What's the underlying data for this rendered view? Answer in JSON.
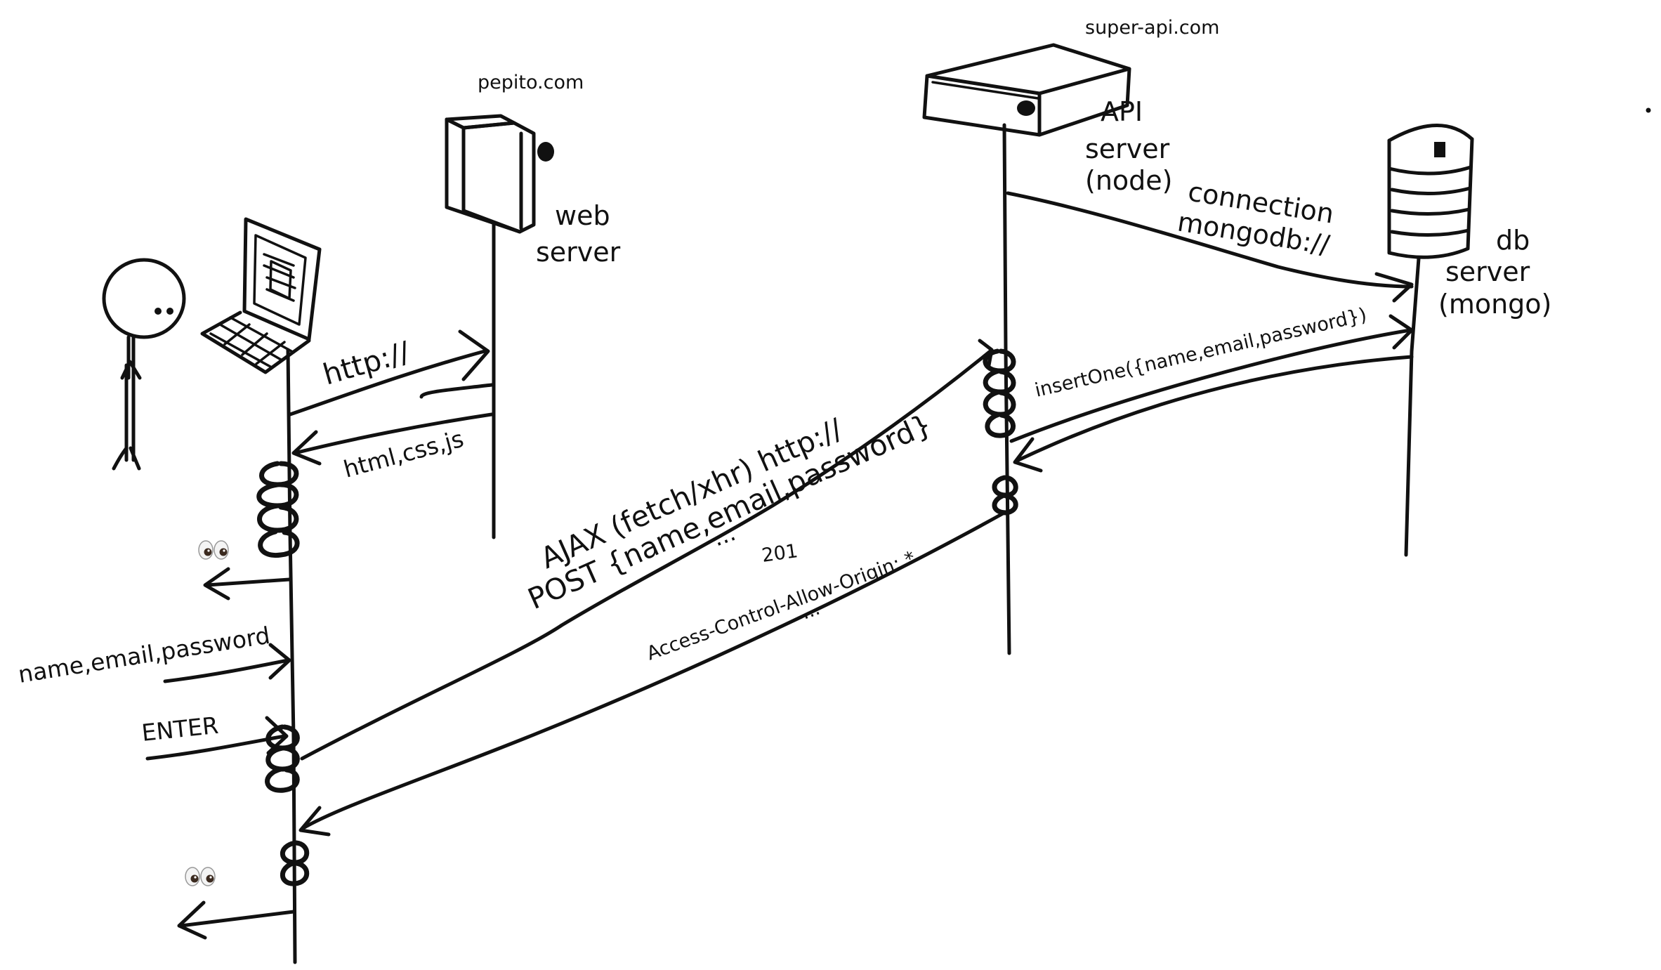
{
  "actors": {
    "web_server_domain": "pepito.com",
    "web_server_name_line1": "web",
    "web_server_name_line2": "server",
    "api_server_domain": "super-api.com",
    "api_server_name_line1": "API",
    "api_server_name_line2": "server",
    "api_server_name_line3": "(node)",
    "db_server_name_line1": "db",
    "db_server_name_line2": "server",
    "db_server_name_line3": "(mongo)"
  },
  "messages": {
    "http_request": "http://",
    "html_response": "html,css,js",
    "user_input": "name,email,password",
    "enter_key": "ENTER",
    "ajax_line1": "AJAX (fetch/xhr) http://",
    "ajax_line2": "POST {name,email,password}",
    "ajax_ellipsis": "...",
    "created_status": "201",
    "cors_header": "Access-Control-Allow-Origin: *",
    "response_ellipsis": "...",
    "db_connection_line1": "connection",
    "db_connection_line2": "mongodb://",
    "db_insert": "insertOne({name,email,password})"
  },
  "icons": {
    "user": "stick-figure-icon",
    "laptop": "laptop-icon",
    "web_server": "server-tower-icon",
    "api_server": "server-box-icon",
    "database": "database-cylinder-icon",
    "eyes": "eyes-emoji-icon"
  }
}
